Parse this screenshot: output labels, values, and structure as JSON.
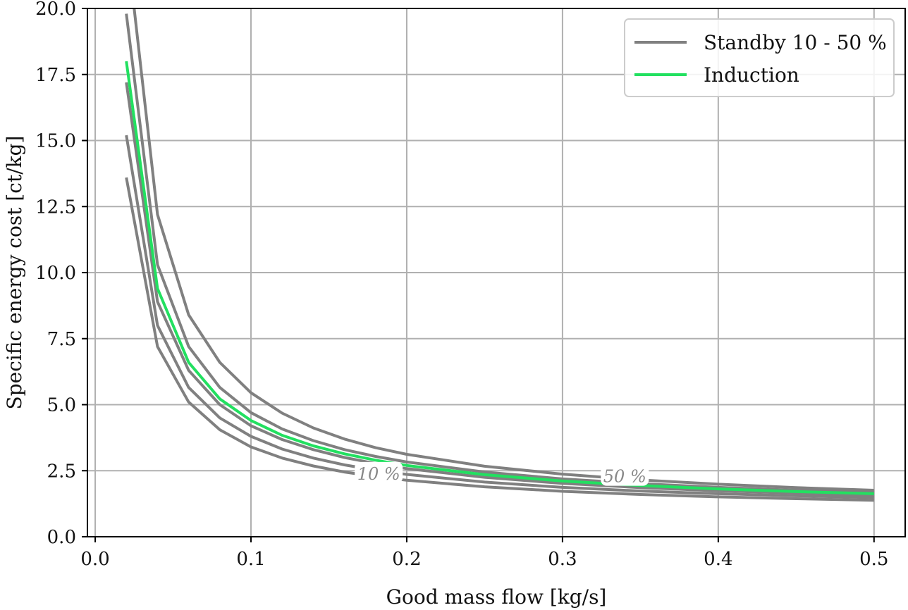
{
  "chart_data": {
    "type": "line",
    "title": "",
    "xlabel": "Good mass flow [kg/s]",
    "ylabel": "Specific energy cost [ct/kg]",
    "xlim": [
      -0.005,
      0.52
    ],
    "ylim": [
      0,
      20
    ],
    "xticks": [
      "0.0",
      "0.1",
      "0.2",
      "0.3",
      "0.4",
      "0.5"
    ],
    "yticks": [
      "0.0",
      "2.5",
      "5.0",
      "7.5",
      "10.0",
      "12.5",
      "15.0",
      "17.5",
      "20.0"
    ],
    "grid": true,
    "legend_position": "top-right",
    "legend": [
      {
        "label": "Standby 10 - 50 %",
        "color": "#808080"
      },
      {
        "label": "Induction",
        "color": "#22e060"
      }
    ],
    "x": [
      0.02,
      0.04,
      0.06,
      0.08,
      0.1,
      0.12,
      0.14,
      0.16,
      0.18,
      0.2,
      0.25,
      0.3,
      0.35,
      0.4,
      0.45,
      0.5
    ],
    "series": [
      {
        "group": "standby",
        "color": "#808080",
        "values": [
          13.6,
          7.2,
          5.1,
          4.05,
          3.4,
          2.98,
          2.68,
          2.45,
          2.28,
          2.14,
          1.89,
          1.72,
          1.6,
          1.51,
          1.44,
          1.38
        ]
      },
      {
        "group": "standby",
        "color": "#808080",
        "values": [
          15.2,
          8.0,
          5.65,
          4.5,
          3.8,
          3.32,
          2.98,
          2.72,
          2.52,
          2.36,
          2.07,
          1.87,
          1.73,
          1.63,
          1.55,
          1.48
        ]
      },
      {
        "group": "standby",
        "color": "#808080",
        "values": [
          17.2,
          8.9,
          6.3,
          5.0,
          4.2,
          3.68,
          3.3,
          3.0,
          2.77,
          2.58,
          2.25,
          2.02,
          1.86,
          1.74,
          1.65,
          1.57
        ]
      },
      {
        "group": "standby",
        "color": "#808080",
        "values": [
          19.8,
          10.3,
          7.2,
          5.65,
          4.7,
          4.08,
          3.64,
          3.3,
          3.04,
          2.83,
          2.45,
          2.19,
          2.01,
          1.87,
          1.76,
          1.67
        ]
      },
      {
        "group": "standby",
        "color": "#808080",
        "x": [
          0.025,
          0.04,
          0.06,
          0.08,
          0.1,
          0.12,
          0.14,
          0.16,
          0.18,
          0.2,
          0.25,
          0.3,
          0.35,
          0.4,
          0.45,
          0.5
        ],
        "values": [
          20.0,
          12.2,
          8.4,
          6.6,
          5.45,
          4.68,
          4.12,
          3.7,
          3.37,
          3.12,
          2.67,
          2.37,
          2.15,
          1.99,
          1.86,
          1.76
        ]
      },
      {
        "name": "Induction",
        "group": "induction",
        "color": "#22e060",
        "values": [
          18.0,
          9.4,
          6.6,
          5.22,
          4.4,
          3.84,
          3.44,
          3.14,
          2.9,
          2.7,
          2.35,
          2.11,
          1.94,
          1.81,
          1.71,
          1.63
        ]
      }
    ],
    "annotations": [
      {
        "text": "10 %",
        "x": 0.182,
        "y": 2.35
      },
      {
        "text": "50 %",
        "x": 0.34,
        "y": 2.25
      }
    ]
  }
}
